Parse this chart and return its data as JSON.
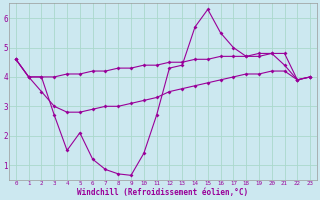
{
  "xlabel": "Windchill (Refroidissement éolien,°C)",
  "background_color": "#cce8f0",
  "grid_color": "#aad8cc",
  "line_color": "#990099",
  "xlim": [
    -0.5,
    23.5
  ],
  "ylim": [
    0.5,
    6.5
  ],
  "yticks": [
    1,
    2,
    3,
    4,
    5,
    6
  ],
  "xticks": [
    0,
    1,
    2,
    3,
    4,
    5,
    6,
    7,
    8,
    9,
    10,
    11,
    12,
    13,
    14,
    15,
    16,
    17,
    18,
    19,
    20,
    21,
    22,
    23
  ],
  "line1_x": [
    0,
    1,
    2,
    3,
    4,
    5,
    6,
    7,
    8,
    9,
    10,
    11,
    12,
    13,
    14,
    15,
    16,
    17,
    18,
    19,
    20,
    21,
    22,
    23
  ],
  "line1_y": [
    4.6,
    4.0,
    4.0,
    4.0,
    4.1,
    4.1,
    4.2,
    4.2,
    4.3,
    4.3,
    4.4,
    4.4,
    4.5,
    4.5,
    4.6,
    4.6,
    4.7,
    4.7,
    4.7,
    4.8,
    4.8,
    4.8,
    3.9,
    4.0
  ],
  "line2_x": [
    0,
    1,
    2,
    3,
    4,
    5,
    6,
    7,
    8,
    9,
    10,
    11,
    12,
    13,
    14,
    15,
    16,
    17,
    18,
    19,
    20,
    21,
    22,
    23
  ],
  "line2_y": [
    4.6,
    4.0,
    4.0,
    2.7,
    1.5,
    2.1,
    1.2,
    0.85,
    0.7,
    0.65,
    1.4,
    2.7,
    4.3,
    4.4,
    5.7,
    6.3,
    5.5,
    5.0,
    4.7,
    4.7,
    4.8,
    4.4,
    3.9,
    4.0
  ],
  "line3_x": [
    0,
    1,
    2,
    3,
    4,
    5,
    6,
    7,
    8,
    9,
    10,
    11,
    12,
    13,
    14,
    15,
    16,
    17,
    18,
    19,
    20,
    21,
    22,
    23
  ],
  "line3_y": [
    4.6,
    4.0,
    3.5,
    3.0,
    2.8,
    2.8,
    2.9,
    3.0,
    3.0,
    3.1,
    3.2,
    3.3,
    3.5,
    3.6,
    3.7,
    3.8,
    3.9,
    4.0,
    4.1,
    4.1,
    4.2,
    4.2,
    3.9,
    4.0
  ]
}
